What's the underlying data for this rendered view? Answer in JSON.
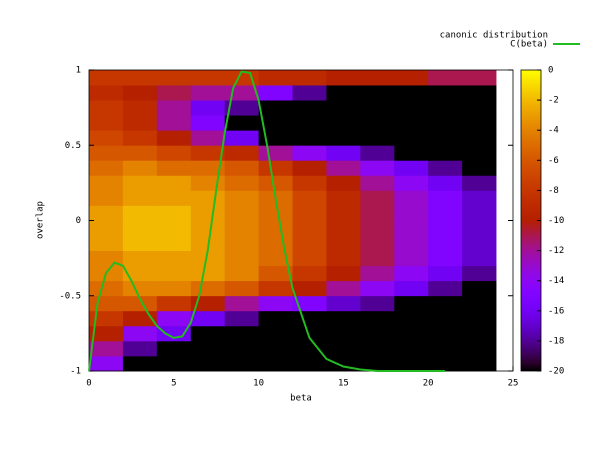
{
  "chart_data": {
    "type": "heatmap",
    "xlabel": "beta",
    "ylabel": "overlap",
    "legend_title": "canonic distribution",
    "xlim": [
      0,
      25
    ],
    "xticks": [
      0,
      5,
      10,
      15,
      20,
      25
    ],
    "ylim": [
      -1,
      1
    ],
    "yticks": [
      -1,
      -0.5,
      0,
      0.5,
      1
    ],
    "clim": [
      -20,
      0
    ],
    "cticks": [
      0,
      -2,
      -4,
      -6,
      -8,
      -10,
      -12,
      -14,
      -16,
      -18,
      -20
    ],
    "x_edges": [
      0,
      2,
      4,
      6,
      8,
      10,
      12,
      14,
      16,
      18,
      20,
      22,
      24
    ],
    "y_edges": [
      -1,
      -0.9,
      -0.8,
      -0.7,
      -0.6,
      -0.5,
      -0.4,
      -0.3,
      -0.2,
      -0.1,
      0,
      0.1,
      0.2,
      0.3,
      0.4,
      0.5,
      0.6,
      0.7,
      0.8,
      0.9,
      1
    ],
    "z": [
      [
        -14,
        -20,
        -20,
        -20,
        -20,
        -20,
        -20,
        -20,
        -20,
        -20,
        -20,
        -20
      ],
      [
        -12,
        -18,
        -20,
        -20,
        -20,
        -20,
        -20,
        -20,
        -20,
        -20,
        -20,
        -20
      ],
      [
        -10,
        -14,
        -16,
        -20,
        -20,
        -20,
        -20,
        -20,
        -20,
        -20,
        -20,
        -20
      ],
      [
        -8,
        -10,
        -14,
        -16,
        -18,
        -20,
        -20,
        -20,
        -20,
        -20,
        -20,
        -20
      ],
      [
        -6,
        -6,
        -8,
        -10,
        -12,
        -14,
        -15,
        -17,
        -18,
        -20,
        -20,
        -20
      ],
      [
        -5,
        -4,
        -4,
        -5,
        -6,
        -8,
        -10,
        -12,
        -14,
        -16,
        -18,
        -20
      ],
      [
        -4,
        -3,
        -3,
        -3,
        -4,
        -6,
        -8,
        -10,
        -12,
        -14,
        -16,
        -18
      ],
      [
        -4,
        -3,
        -3,
        -3,
        -4,
        -5,
        -7,
        -9,
        -11,
        -13,
        -15,
        -17
      ],
      [
        -3,
        -2,
        -2,
        -3,
        -4,
        -5,
        -7,
        -9,
        -11,
        -13,
        -15,
        -17
      ],
      [
        -3,
        -2,
        -2,
        -3,
        -4,
        -5,
        -7,
        -9,
        -11,
        -13,
        -15,
        -17
      ],
      [
        -3,
        -2,
        -2,
        -3,
        -4,
        -5,
        -7,
        -9,
        -11,
        -13,
        -15,
        -17
      ],
      [
        -4,
        -3,
        -3,
        -3,
        -4,
        -5,
        -7,
        -9,
        -11,
        -13,
        -15,
        -17
      ],
      [
        -4,
        -3,
        -3,
        -4,
        -5,
        -6,
        -8,
        -10,
        -12,
        -14,
        -16,
        -18
      ],
      [
        -5,
        -4,
        -5,
        -5,
        -6,
        -8,
        -10,
        -12,
        -14,
        -16,
        -18,
        -20
      ],
      [
        -6,
        -6,
        -7,
        -8,
        -9,
        -12,
        -14,
        -16,
        -18,
        -20,
        -20,
        -20
      ],
      [
        -7,
        -8,
        -10,
        -12,
        -16,
        -20,
        -20,
        -20,
        -20,
        -20,
        -20,
        -20
      ],
      [
        -8,
        -9,
        -12,
        -15,
        -20,
        -20,
        -20,
        -20,
        -20,
        -20,
        -20,
        -20
      ],
      [
        -8,
        -9,
        -12,
        -16,
        -18,
        -20,
        -20,
        -20,
        -20,
        -20,
        -20,
        -20
      ],
      [
        -9,
        -10,
        -11,
        -12,
        -12,
        -15,
        -18,
        -20,
        -20,
        -20,
        -20,
        -20
      ],
      [
        -8,
        -8,
        -8,
        -8,
        -8,
        -9,
        -9,
        -10,
        -10,
        -10,
        -11,
        -11
      ]
    ],
    "series": [
      {
        "name": "C(beta)",
        "color": "#22bb22",
        "x": [
          0,
          0.5,
          1,
          1.5,
          2,
          2.5,
          3,
          3.5,
          4,
          4.5,
          5,
          5.5,
          6,
          6.5,
          7,
          7.5,
          8,
          8.5,
          9,
          9.5,
          10,
          10.5,
          11,
          11.5,
          12,
          13,
          14,
          15,
          16,
          17,
          18,
          19,
          20,
          21
        ],
        "values": [
          -1,
          -0.55,
          -0.35,
          -0.28,
          -0.3,
          -0.4,
          -0.52,
          -0.62,
          -0.7,
          -0.75,
          -0.78,
          -0.77,
          -0.68,
          -0.5,
          -0.2,
          0.2,
          0.58,
          0.88,
          0.99,
          0.98,
          0.8,
          0.5,
          0.15,
          -0.18,
          -0.45,
          -0.78,
          -0.92,
          -0.97,
          -0.99,
          -1,
          -1,
          -1,
          -1,
          -1
        ]
      }
    ]
  }
}
